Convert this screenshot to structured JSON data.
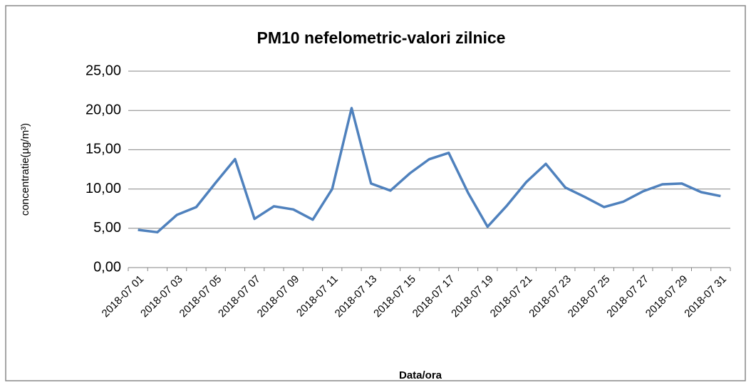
{
  "chart_data": {
    "type": "line",
    "title": "PM10 nefelometric-valori zilnice",
    "x_label": "Data/ora",
    "y_label": "concentratie(µg/m³)",
    "categories": [
      "2018-07 01",
      null,
      "2018-07 03",
      null,
      "2018-07 05",
      null,
      "2018-07 07",
      null,
      "2018-07 09",
      null,
      "2018-07 11",
      null,
      "2018-07 13",
      null,
      "2018-07 15",
      null,
      "2018-07 17",
      null,
      "2018-07 19",
      null,
      "2018-07 21",
      null,
      "2018-07 23",
      null,
      "2018-07 25",
      null,
      "2018-07 27",
      null,
      "2018-07 29",
      null,
      "2018-07 31"
    ],
    "series": [
      {
        "color": "#4f81bd",
        "values": [
          4.8,
          4.5,
          6.7,
          7.7,
          10.8,
          13.8,
          6.2,
          7.8,
          7.4,
          6.1,
          10.0,
          20.3,
          10.7,
          9.8,
          12.0,
          13.8,
          14.6,
          9.5,
          5.2,
          7.9,
          10.9,
          13.2,
          10.2,
          9.0,
          7.7,
          8.4,
          9.7,
          10.6,
          10.7,
          9.6,
          9.1
        ]
      }
    ],
    "ylim": [
      0,
      25
    ],
    "yticks": [
      {
        "value": 0,
        "label": "0,00"
      },
      {
        "value": 5,
        "label": "5,00"
      },
      {
        "value": 10,
        "label": "10,00"
      },
      {
        "value": 15,
        "label": "15,00"
      },
      {
        "value": 20,
        "label": "20,00"
      },
      {
        "value": 25,
        "label": "25,00"
      }
    ],
    "grid": true
  }
}
